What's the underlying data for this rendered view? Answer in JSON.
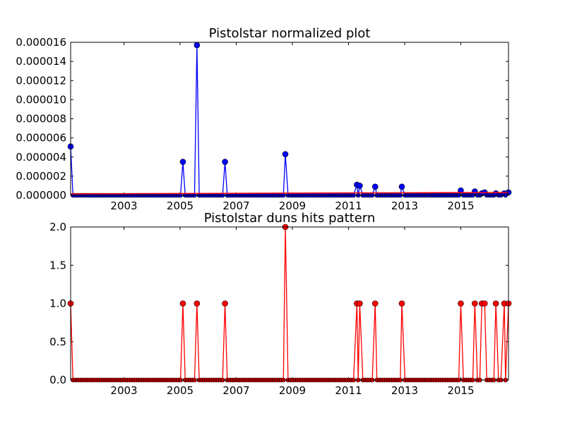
{
  "chart_data": [
    {
      "type": "line",
      "title": "Pistolstar normalized plot",
      "xlabel": "",
      "ylabel": "",
      "xlim": [
        2001.1,
        2016.7
      ],
      "ylim": [
        0,
        1.6e-05
      ],
      "x_ticks": [
        2003,
        2005,
        2007,
        2009,
        2011,
        2013,
        2015
      ],
      "x_tick_labels": [
        "2003",
        "2005",
        "2007",
        "2009",
        "2011",
        "2013",
        "2015"
      ],
      "y_ticks": [
        0,
        2e-06,
        4e-06,
        6e-06,
        8e-06,
        1e-05,
        1.2e-05,
        1.4e-05,
        1.6e-05
      ],
      "y_tick_labels": [
        "0.000000",
        "0.000002",
        "0.000004",
        "0.000006",
        "0.000008",
        "0.000010",
        "0.000012",
        "0.000014",
        "0.000016"
      ],
      "grid": false,
      "color": "#0000ff",
      "baseline_color": "#ff0000",
      "baseline_value": 1.5e-07,
      "sample_step": 0.0833,
      "hits": [
        {
          "x": 2001.1,
          "y": 5.1e-06
        },
        {
          "x": 2005.1,
          "y": 3.5e-06
        },
        {
          "x": 2005.6,
          "y": 1.57e-05
        },
        {
          "x": 2006.6,
          "y": 3.5e-06
        },
        {
          "x": 2008.75,
          "y": 4.3e-06
        },
        {
          "x": 2011.3,
          "y": 1.1e-06
        },
        {
          "x": 2011.4,
          "y": 1e-06
        },
        {
          "x": 2011.95,
          "y": 9e-07
        },
        {
          "x": 2012.9,
          "y": 9e-07
        },
        {
          "x": 2015.0,
          "y": 5e-07
        },
        {
          "x": 2015.5,
          "y": 4e-07
        },
        {
          "x": 2015.75,
          "y": 2e-07
        },
        {
          "x": 2015.85,
          "y": 3e-07
        },
        {
          "x": 2016.25,
          "y": 2e-07
        },
        {
          "x": 2016.55,
          "y": 2e-07
        },
        {
          "x": 2016.7,
          "y": 3e-07
        }
      ]
    },
    {
      "type": "line",
      "title": "Pistolstar duns hits pattern",
      "xlabel": "",
      "ylabel": "",
      "xlim": [
        2001.1,
        2016.7
      ],
      "ylim": [
        0,
        2.0
      ],
      "x_ticks": [
        2003,
        2005,
        2007,
        2009,
        2011,
        2013,
        2015
      ],
      "x_tick_labels": [
        "2003",
        "2005",
        "2007",
        "2009",
        "2011",
        "2013",
        "2015"
      ],
      "y_ticks": [
        0,
        0.5,
        1.0,
        1.5,
        2.0
      ],
      "y_tick_labels": [
        "0.0",
        "0.5",
        "1.0",
        "1.5",
        "2.0"
      ],
      "grid": false,
      "color": "#ff0000",
      "sample_step": 0.0833,
      "hits": [
        {
          "x": 2001.1,
          "y": 1
        },
        {
          "x": 2005.1,
          "y": 1
        },
        {
          "x": 2005.6,
          "y": 1
        },
        {
          "x": 2006.6,
          "y": 1
        },
        {
          "x": 2008.75,
          "y": 2
        },
        {
          "x": 2011.3,
          "y": 1
        },
        {
          "x": 2011.4,
          "y": 1
        },
        {
          "x": 2011.95,
          "y": 1
        },
        {
          "x": 2012.9,
          "y": 1
        },
        {
          "x": 2015.0,
          "y": 1
        },
        {
          "x": 2015.5,
          "y": 1
        },
        {
          "x": 2015.75,
          "y": 1
        },
        {
          "x": 2015.85,
          "y": 1
        },
        {
          "x": 2016.25,
          "y": 1
        },
        {
          "x": 2016.55,
          "y": 1
        },
        {
          "x": 2016.7,
          "y": 1
        }
      ]
    }
  ]
}
